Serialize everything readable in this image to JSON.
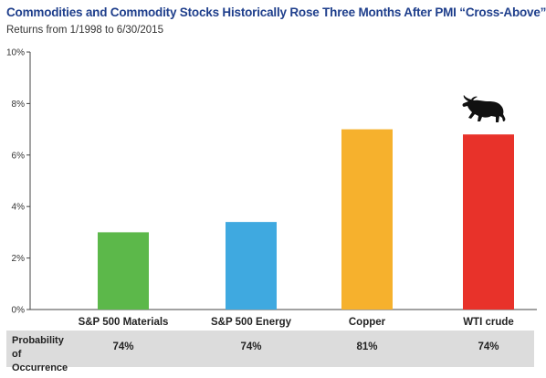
{
  "header": {
    "title": "Commodities and Commodity Stocks Historically Rose Three Months After PMI “Cross-Above”",
    "subtitle": "Returns from 1/1998 to 6/30/2015"
  },
  "chart_data": {
    "type": "bar",
    "title": "Commodities and Commodity Stocks Historically Rose Three Months After PMI “Cross-Above”",
    "subtitle": "Returns from 1/1998 to 6/30/2015",
    "categories": [
      "S&P 500 Materials",
      "S&P 500 Energy",
      "Copper",
      "WTI crude"
    ],
    "values": [
      3.0,
      3.4,
      7.0,
      6.8
    ],
    "colors": [
      "#5cb84a",
      "#3fa9e0",
      "#f6b12d",
      "#e8322a"
    ],
    "ylim": [
      0,
      10
    ],
    "yticks": [
      "0%",
      "2%",
      "4%",
      "6%",
      "8%",
      "10%"
    ],
    "ytick_values": [
      0,
      2,
      4,
      6,
      8,
      10
    ],
    "grid": false
  },
  "probability": {
    "label": "Probability of Occurrence",
    "values": [
      "74%",
      "74%",
      "81%",
      "74%"
    ]
  },
  "icons": {
    "bull": "bull-icon"
  }
}
